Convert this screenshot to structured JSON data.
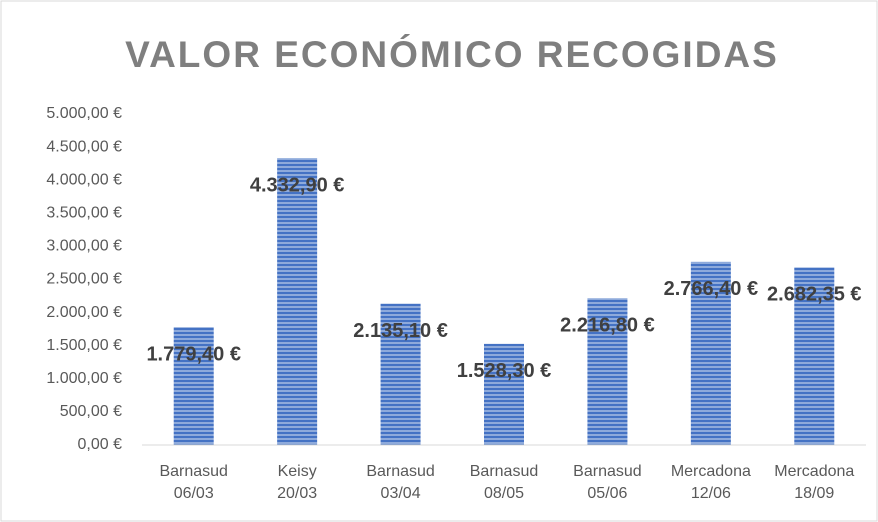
{
  "chart_data": {
    "type": "bar",
    "title": "VALOR ECONÓMICO RECOGIDAS",
    "categories": [
      "Barnasud 06/03",
      "Keisy 20/03",
      "Barnasud 03/04",
      "Barnasud 08/05",
      "Barnasud 05/06",
      "Mercadona 12/06",
      "Mercadona 18/09"
    ],
    "values": [
      1779.4,
      4332.9,
      2135.1,
      1528.3,
      2216.8,
      2766.4,
      2682.35
    ],
    "value_labels": [
      "1.779,40 €",
      "4.332,90 €",
      "2.135,10 €",
      "1.528,30 €",
      "2.216,80 €",
      "2.766,40 €",
      "2.682,35 €"
    ],
    "color": "#4472c4",
    "ylim": [
      0,
      5000
    ],
    "yticks": [
      {
        "value": 0,
        "label": "0,00 €"
      },
      {
        "value": 500,
        "label": "500,00 €"
      },
      {
        "value": 1000,
        "label": "1.000,00 €"
      },
      {
        "value": 1500,
        "label": "1.500,00 €"
      },
      {
        "value": 2000,
        "label": "2.000,00 €"
      },
      {
        "value": 2500,
        "label": "2.500,00 €"
      },
      {
        "value": 3000,
        "label": "3.000,00 €"
      },
      {
        "value": 3500,
        "label": "3.500,00 €"
      },
      {
        "value": 4000,
        "label": "4.000,00 €"
      },
      {
        "value": 4500,
        "label": "4.500,00 €"
      },
      {
        "value": 5000,
        "label": "5.000,00 €"
      }
    ],
    "grid": false
  }
}
